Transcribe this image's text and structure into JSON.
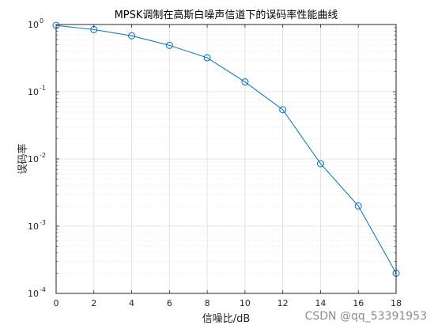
{
  "chart_data": {
    "type": "line",
    "title": "MPSK调制在高斯白噪声信道下的误码率性能曲线",
    "xlabel": "信噪比/dB",
    "ylabel": "误码率",
    "xlim": [
      0,
      18
    ],
    "ylim": [
      0.0001,
      1
    ],
    "yscale": "log",
    "grid": true,
    "x_ticks": [
      "0",
      "2",
      "4",
      "6",
      "8",
      "10",
      "12",
      "14",
      "16",
      "18"
    ],
    "y_ticks": [
      {
        "base": "10",
        "exp": "0"
      },
      {
        "base": "10",
        "exp": "-1"
      },
      {
        "base": "10",
        "exp": "-2"
      },
      {
        "base": "10",
        "exp": "-3"
      },
      {
        "base": "10",
        "exp": "-4"
      }
    ],
    "series": [
      {
        "color": "#0072BD",
        "marker": "circle",
        "x": [
          0,
          2,
          4,
          6,
          8,
          10,
          12,
          14,
          16,
          18
        ],
        "y": [
          0.97,
          0.84,
          0.68,
          0.49,
          0.32,
          0.14,
          0.054,
          0.0085,
          0.002,
          0.0002
        ]
      }
    ]
  },
  "watermark": "CSDN @qq_53391953"
}
